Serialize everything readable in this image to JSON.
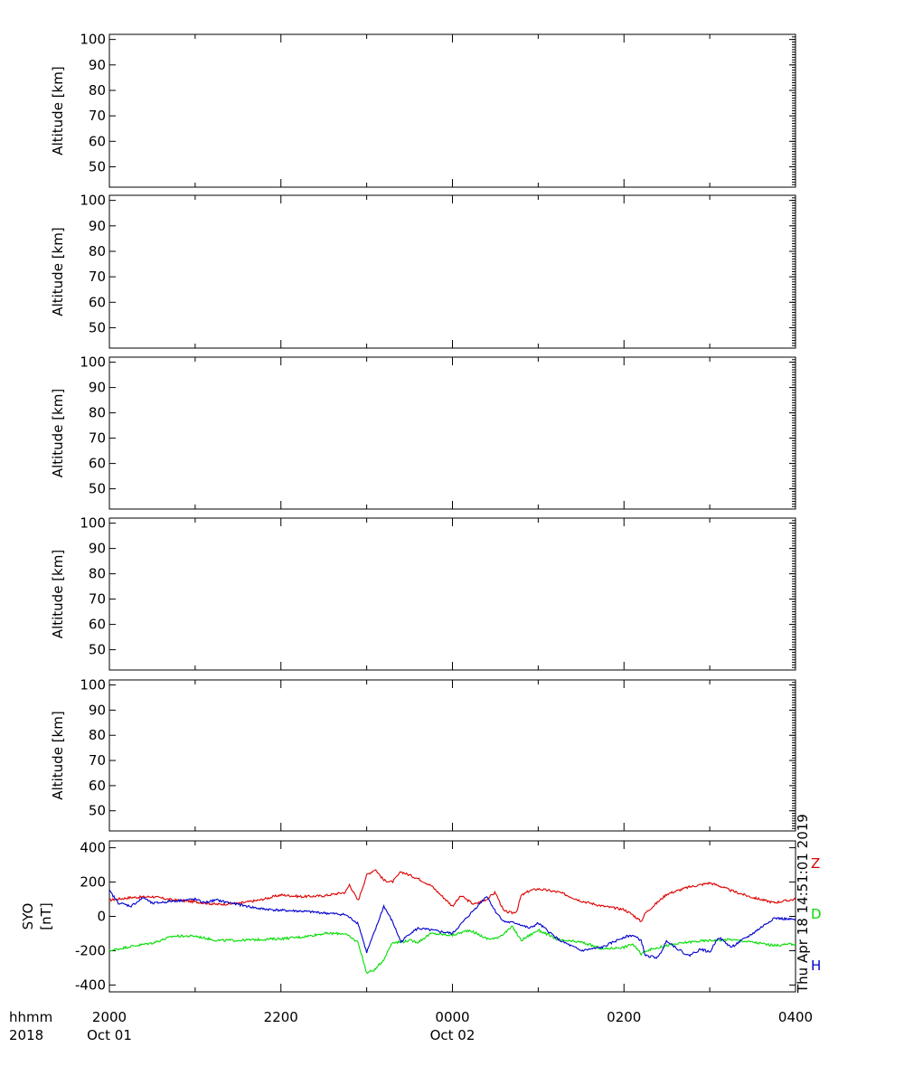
{
  "chart_data": [
    {
      "type": "line",
      "ylabel": "Altitude  [km]",
      "ylim": [
        42,
        102
      ],
      "ytick_values": [
        50,
        60,
        70,
        80,
        90,
        100
      ],
      "ytick_labels": [
        "50",
        "60",
        "70",
        "80",
        "90",
        "100"
      ],
      "xlim_hours": [
        0,
        8
      ],
      "series": []
    },
    {
      "type": "line",
      "ylabel": "Altitude  [km]",
      "ylim": [
        42,
        102
      ],
      "ytick_values": [
        50,
        60,
        70,
        80,
        90,
        100
      ],
      "ytick_labels": [
        "50",
        "60",
        "70",
        "80",
        "90",
        "100"
      ],
      "xlim_hours": [
        0,
        8
      ],
      "series": []
    },
    {
      "type": "line",
      "ylabel": "Altitude  [km]",
      "ylim": [
        42,
        102
      ],
      "ytick_values": [
        50,
        60,
        70,
        80,
        90,
        100
      ],
      "ytick_labels": [
        "50",
        "60",
        "70",
        "80",
        "90",
        "100"
      ],
      "xlim_hours": [
        0,
        8
      ],
      "series": []
    },
    {
      "type": "line",
      "ylabel": "Altitude  [km]",
      "ylim": [
        42,
        102
      ],
      "ytick_values": [
        50,
        60,
        70,
        80,
        90,
        100
      ],
      "ytick_labels": [
        "50",
        "60",
        "70",
        "80",
        "90",
        "100"
      ],
      "xlim_hours": [
        0,
        8
      ],
      "series": []
    },
    {
      "type": "line",
      "ylabel": "Altitude  [km]",
      "ylim": [
        42,
        102
      ],
      "ytick_values": [
        50,
        60,
        70,
        80,
        90,
        100
      ],
      "ytick_labels": [
        "50",
        "60",
        "70",
        "80",
        "90",
        "100"
      ],
      "xlim_hours": [
        0,
        8
      ],
      "series": []
    },
    {
      "type": "line",
      "ylabel_lines": [
        "SYO",
        "[nT]"
      ],
      "ylim": [
        -440,
        440
      ],
      "ytick_values": [
        -400,
        -200,
        0,
        200,
        400
      ],
      "ytick_labels": [
        "-400",
        "-200",
        "0",
        "200",
        "400"
      ],
      "xlim_hours": [
        0,
        8
      ],
      "series": [
        {
          "name": "Z",
          "color": "#dd0000",
          "x": [
            0,
            0.25,
            0.5,
            0.75,
            1,
            1.25,
            1.5,
            1.75,
            2,
            2.25,
            2.5,
            2.75,
            2.8,
            2.9,
            3.0,
            3.1,
            3.2,
            3.3,
            3.4,
            3.5,
            3.6,
            3.75,
            4.0,
            4.1,
            4.25,
            4.4,
            4.5,
            4.6,
            4.7,
            4.75,
            4.8,
            4.9,
            5.0,
            5.25,
            5.5,
            5.75,
            6.0,
            6.1,
            6.2,
            6.25,
            6.5,
            6.75,
            7.0,
            7.1,
            7.25,
            7.5,
            7.75,
            8.0
          ],
          "values": [
            95,
            110,
            115,
            95,
            85,
            70,
            75,
            95,
            125,
            115,
            120,
            140,
            185,
            90,
            240,
            275,
            210,
            200,
            260,
            240,
            220,
            180,
            60,
            120,
            70,
            100,
            140,
            30,
            20,
            30,
            120,
            150,
            160,
            140,
            90,
            60,
            40,
            10,
            -30,
            20,
            130,
            170,
            195,
            180,
            150,
            110,
            80,
            100
          ]
        },
        {
          "name": "D",
          "color": "#00dd00",
          "x": [
            0,
            0.25,
            0.5,
            0.75,
            1,
            1.25,
            1.5,
            1.75,
            2,
            2.25,
            2.5,
            2.75,
            2.8,
            2.9,
            3.0,
            3.1,
            3.2,
            3.3,
            3.4,
            3.5,
            3.6,
            3.75,
            4.0,
            4.2,
            4.4,
            4.5,
            4.6,
            4.7,
            4.75,
            4.8,
            5.0,
            5.25,
            5.5,
            5.75,
            6.0,
            6.1,
            6.2,
            6.25,
            6.5,
            6.75,
            7.0,
            7.25,
            7.5,
            7.75,
            8.0
          ],
          "values": [
            -200,
            -175,
            -155,
            -115,
            -115,
            -140,
            -140,
            -135,
            -130,
            -120,
            -100,
            -100,
            -120,
            -150,
            -330,
            -310,
            -250,
            -150,
            -150,
            -140,
            -150,
            -100,
            -110,
            -80,
            -130,
            -130,
            -100,
            -60,
            -100,
            -140,
            -80,
            -140,
            -150,
            -190,
            -180,
            -160,
            -220,
            -200,
            -170,
            -150,
            -140,
            -135,
            -150,
            -170,
            -160
          ]
        },
        {
          "name": "H",
          "color": "#0000cc",
          "x": [
            0,
            0.1,
            0.25,
            0.4,
            0.5,
            0.75,
            1,
            1.1,
            1.25,
            1.5,
            1.75,
            2,
            2.25,
            2.5,
            2.75,
            2.9,
            3.0,
            3.1,
            3.2,
            3.3,
            3.4,
            3.5,
            3.6,
            3.75,
            4.0,
            4.2,
            4.4,
            4.5,
            4.6,
            4.75,
            4.9,
            5.0,
            5.25,
            5.5,
            5.75,
            6.0,
            6.1,
            6.2,
            6.25,
            6.4,
            6.5,
            6.6,
            6.75,
            6.9,
            7.0,
            7.1,
            7.25,
            7.5,
            7.75,
            8.0
          ],
          "values": [
            150,
            80,
            60,
            110,
            75,
            90,
            100,
            80,
            95,
            70,
            45,
            35,
            30,
            20,
            10,
            -40,
            -210,
            -80,
            60,
            -30,
            -150,
            -100,
            -70,
            -80,
            -100,
            10,
            120,
            30,
            -30,
            -40,
            -70,
            -40,
            -140,
            -200,
            -180,
            -120,
            -110,
            -140,
            -230,
            -240,
            -140,
            -180,
            -230,
            -190,
            -210,
            -120,
            -180,
            -100,
            -10,
            -20
          ]
        }
      ]
    }
  ],
  "x_axis": {
    "row_label": "hhmm",
    "year_label": "2018",
    "ticks": [
      {
        "hour": 0,
        "label": "2000",
        "date": "Oct 01"
      },
      {
        "hour": 2,
        "label": "2200",
        "date": ""
      },
      {
        "hour": 4,
        "label": "0000",
        "date": "Oct 02"
      },
      {
        "hour": 6,
        "label": "0200",
        "date": ""
      },
      {
        "hour": 8,
        "label": "0400",
        "date": ""
      }
    ]
  },
  "legend": [
    {
      "label": "Z",
      "color": "#dd0000"
    },
    {
      "label": "D",
      "color": "#00dd00"
    },
    {
      "label": "H",
      "color": "#0000cc"
    }
  ],
  "timestamp": "Thu Apr 18 14:51:01 2019"
}
